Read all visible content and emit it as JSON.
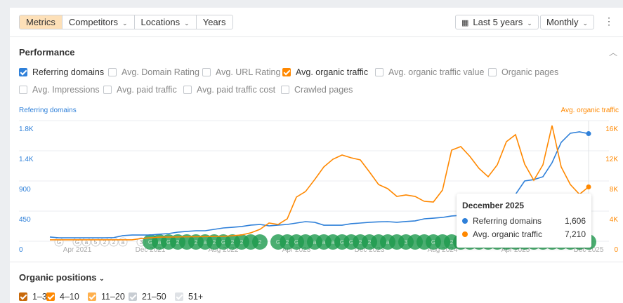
{
  "toolbar": {
    "tabs": [
      {
        "label": "Metrics",
        "active": true
      },
      {
        "label": "Competitors",
        "dropdown": true
      },
      {
        "label": "Locations",
        "dropdown": true
      },
      {
        "label": "Years"
      }
    ],
    "date_range": "Last 5 years",
    "interval": "Monthly",
    "more_icon": "kebab-icon",
    "calendar_icon": "calendar-icon"
  },
  "performance": {
    "title": "Performance",
    "metrics": [
      {
        "label": "Referring domains",
        "checked": true,
        "color": "#2f80d9"
      },
      {
        "label": "Avg. Domain Rating",
        "checked": false
      },
      {
        "label": "Avg. URL Rating",
        "checked": false
      },
      {
        "label": "Avg. organic traffic",
        "checked": true,
        "color": "#ff8800"
      },
      {
        "label": "Avg. organic traffic value",
        "checked": false
      },
      {
        "label": "Organic pages",
        "checked": false
      },
      {
        "label": "Avg. Impressions",
        "checked": false
      },
      {
        "label": "Avg. paid traffic",
        "checked": false
      },
      {
        "label": "Avg. paid traffic cost",
        "checked": false
      },
      {
        "label": "Crawled pages",
        "checked": false
      }
    ]
  },
  "chart_data": {
    "type": "line",
    "left_axis_title": "Referring domains",
    "right_axis_title": "Avg. organic traffic",
    "left_ticks": [
      "0",
      "450",
      "900",
      "1.4K",
      "1.8K"
    ],
    "right_ticks": [
      "0",
      "4K",
      "8K",
      "12K",
      "16K"
    ],
    "left_ylim": [
      0,
      1800
    ],
    "right_ylim": [
      0,
      16000
    ],
    "x_ticks": [
      "Apr 2021",
      "Dec 2021",
      "Aug 2022",
      "Apr 2023",
      "Dec 2023",
      "Aug 2024",
      "Apr 2025",
      "Dec 2025"
    ],
    "x_range": [
      "Jan 2021",
      "Dec 2025"
    ],
    "grid": true,
    "series": [
      {
        "name": "Referring domains",
        "axis": "left",
        "color": "#2f80d9",
        "values": [
          63,
          52,
          52,
          52,
          52,
          52,
          52,
          55,
          84,
          94,
          94,
          94,
          105,
          115,
          136,
          147,
          157,
          157,
          178,
          199,
          209,
          220,
          241,
          251,
          230,
          241,
          251,
          272,
          293,
          283,
          240,
          240,
          240,
          262,
          272,
          283,
          290,
          293,
          283,
          295,
          304,
          335,
          345,
          356,
          377,
          387,
          400,
          420,
          450,
          500,
          600,
          700,
          900,
          920,
          963,
          1172,
          1476,
          1612,
          1633,
          1606
        ]
      },
      {
        "name": "Avg. organic traffic",
        "axis": "right",
        "color": "#ff8800",
        "values": [
          190,
          190,
          190,
          190,
          190,
          190,
          190,
          190,
          190,
          190,
          370,
          460,
          550,
          560,
          580,
          600,
          610,
          620,
          640,
          650,
          740,
          840,
          1120,
          1580,
          2420,
          2230,
          2980,
          5860,
          6600,
          8180,
          9860,
          10880,
          11440,
          11070,
          10790,
          9200,
          7530,
          6980,
          5950,
          6140,
          5950,
          5300,
          5210,
          6790,
          12090,
          12560,
          11260,
          9670,
          8560,
          10140,
          13210,
          14140,
          10230,
          8090,
          10140,
          15350,
          9860,
          7530,
          6230,
          7210
        ]
      }
    ],
    "annotations": {
      "small": [
        [
          "Feb 2021",
          "G"
        ],
        [
          "Apr 2021",
          "G"
        ],
        [
          "May 2021",
          "a"
        ],
        [
          "Jun 2021",
          "5"
        ],
        [
          "Jul 2021",
          "2"
        ],
        [
          "Aug 2021",
          "2"
        ],
        [
          "Sep 2021",
          "a"
        ],
        [
          "Nov 2021",
          "3"
        ]
      ],
      "green_labels": [
        "G",
        "a",
        "G",
        "2",
        "",
        "2",
        "a",
        "2",
        "G",
        "2",
        "2",
        "",
        "2",
        "G",
        "2",
        "G",
        "",
        "a",
        "a",
        "a",
        "G",
        "G",
        "2",
        "2",
        "",
        "a",
        "",
        "3",
        "",
        "",
        "G",
        "",
        "2",
        "",
        "",
        "a",
        "G",
        "2",
        "",
        "",
        "",
        "",
        "",
        "",
        "G",
        "",
        "G",
        "",
        "G"
      ]
    },
    "tooltip": {
      "title": "December 2025",
      "rows": [
        {
          "label": "Referring domains",
          "value": "1,606",
          "color": "#2f80d9"
        },
        {
          "label": "Avg. organic traffic",
          "value": "7,210",
          "color": "#ff8800"
        }
      ]
    }
  },
  "positions": {
    "title": "Organic positions",
    "items": [
      {
        "label": "1–3",
        "checked": true,
        "color": "#c8690a"
      },
      {
        "label": "4–10",
        "checked": true,
        "color": "#ff8800"
      },
      {
        "label": "11–20",
        "checked": true,
        "color": "#ffb04d"
      },
      {
        "label": "21–50",
        "checked": true,
        "color": "#c8cdd3"
      },
      {
        "label": "51+",
        "checked": true,
        "color": "#dfe2e6"
      }
    ]
  }
}
